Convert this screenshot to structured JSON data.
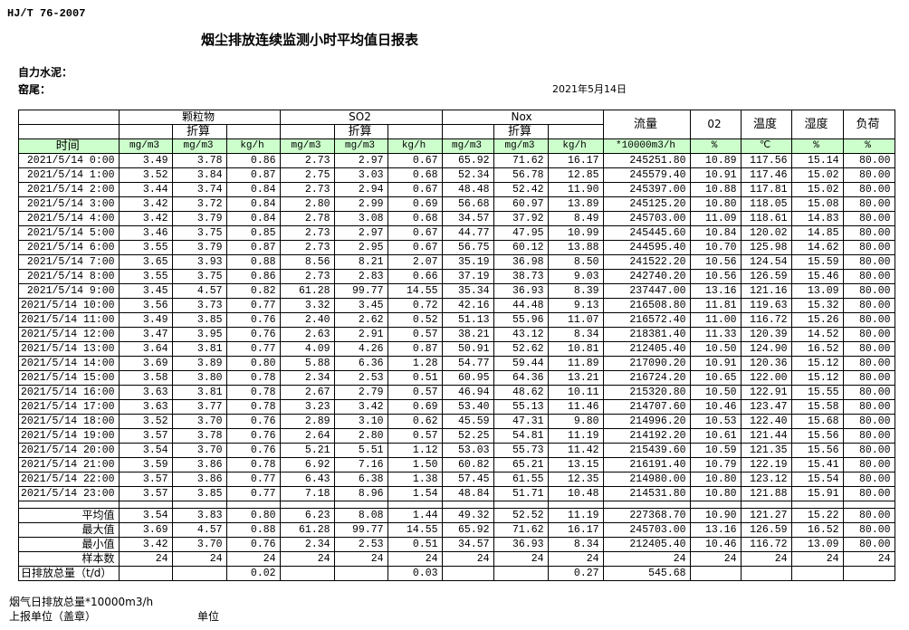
{
  "standard": "HJ/T  76-2007",
  "title": "烟尘排放连续监测小时平均值日报表",
  "company": "自力水泥：",
  "kiln": "窑尾：",
  "date": "2021年5月14日",
  "headers": {
    "groups": [
      "颗粒物",
      "SO2",
      "Nox"
    ],
    "converted": "折算",
    "flow": "流量",
    "o2": "02",
    "temp": "温度",
    "humidity": "湿度",
    "load": "负荷",
    "time": "时间",
    "units": [
      "mg/m3",
      "mg/m3",
      "kg/h",
      "mg/m3",
      "mg/m3",
      "kg/h",
      "mg/m3",
      "mg/m3",
      "kg/h",
      "*10000m3/h",
      "%",
      "℃",
      "%",
      "%"
    ]
  },
  "rows": [
    [
      "2021/5/14 0:00",
      "3.49",
      "3.78",
      "0.86",
      "2.73",
      "2.97",
      "0.67",
      "65.92",
      "71.62",
      "16.17",
      "245251.80",
      "10.89",
      "117.56",
      "15.14",
      "80.00"
    ],
    [
      "2021/5/14 1:00",
      "3.52",
      "3.84",
      "0.87",
      "2.75",
      "3.03",
      "0.68",
      "52.34",
      "56.78",
      "12.85",
      "245579.40",
      "10.91",
      "117.46",
      "15.02",
      "80.00"
    ],
    [
      "2021/5/14 2:00",
      "3.44",
      "3.74",
      "0.84",
      "2.73",
      "2.94",
      "0.67",
      "48.48",
      "52.42",
      "11.90",
      "245397.00",
      "10.88",
      "117.81",
      "15.02",
      "80.00"
    ],
    [
      "2021/5/14 3:00",
      "3.42",
      "3.72",
      "0.84",
      "2.80",
      "2.99",
      "0.69",
      "56.68",
      "60.97",
      "13.89",
      "245125.20",
      "10.80",
      "118.05",
      "15.08",
      "80.00"
    ],
    [
      "2021/5/14 4:00",
      "3.42",
      "3.79",
      "0.84",
      "2.78",
      "3.08",
      "0.68",
      "34.57",
      "37.92",
      "8.49",
      "245703.00",
      "11.09",
      "118.61",
      "14.83",
      "80.00"
    ],
    [
      "2021/5/14 5:00",
      "3.46",
      "3.75",
      "0.85",
      "2.73",
      "2.97",
      "0.67",
      "44.77",
      "47.95",
      "10.99",
      "245445.60",
      "10.84",
      "120.02",
      "14.85",
      "80.00"
    ],
    [
      "2021/5/14 6:00",
      "3.55",
      "3.79",
      "0.87",
      "2.73",
      "2.95",
      "0.67",
      "56.75",
      "60.12",
      "13.88",
      "244595.40",
      "10.70",
      "125.98",
      "14.62",
      "80.00"
    ],
    [
      "2021/5/14 7:00",
      "3.65",
      "3.93",
      "0.88",
      "8.56",
      "8.21",
      "2.07",
      "35.19",
      "36.98",
      "8.50",
      "241522.20",
      "10.56",
      "124.54",
      "15.59",
      "80.00"
    ],
    [
      "2021/5/14 8:00",
      "3.55",
      "3.75",
      "0.86",
      "2.73",
      "2.83",
      "0.66",
      "37.19",
      "38.73",
      "9.03",
      "242740.20",
      "10.56",
      "126.59",
      "15.46",
      "80.00"
    ],
    [
      "2021/5/14 9:00",
      "3.45",
      "4.57",
      "0.82",
      "61.28",
      "99.77",
      "14.55",
      "35.34",
      "36.93",
      "8.39",
      "237447.00",
      "13.16",
      "121.16",
      "13.09",
      "80.00"
    ],
    [
      "2021/5/14 10:00",
      "3.56",
      "3.73",
      "0.77",
      "3.32",
      "3.45",
      "0.72",
      "42.16",
      "44.48",
      "9.13",
      "216508.80",
      "11.81",
      "119.63",
      "15.32",
      "80.00"
    ],
    [
      "2021/5/14 11:00",
      "3.49",
      "3.85",
      "0.76",
      "2.40",
      "2.62",
      "0.52",
      "51.13",
      "55.96",
      "11.07",
      "216572.40",
      "11.00",
      "116.72",
      "15.26",
      "80.00"
    ],
    [
      "2021/5/14 12:00",
      "3.47",
      "3.95",
      "0.76",
      "2.63",
      "2.91",
      "0.57",
      "38.21",
      "43.12",
      "8.34",
      "218381.40",
      "11.33",
      "120.39",
      "14.52",
      "80.00"
    ],
    [
      "2021/5/14 13:00",
      "3.64",
      "3.81",
      "0.77",
      "4.09",
      "4.26",
      "0.87",
      "50.91",
      "52.62",
      "10.81",
      "212405.40",
      "10.50",
      "124.90",
      "16.52",
      "80.00"
    ],
    [
      "2021/5/14 14:00",
      "3.69",
      "3.89",
      "0.80",
      "5.88",
      "6.36",
      "1.28",
      "54.77",
      "59.44",
      "11.89",
      "217090.20",
      "10.91",
      "120.36",
      "15.12",
      "80.00"
    ],
    [
      "2021/5/14 15:00",
      "3.58",
      "3.80",
      "0.78",
      "2.34",
      "2.53",
      "0.51",
      "60.95",
      "64.36",
      "13.21",
      "216724.20",
      "10.65",
      "122.00",
      "15.12",
      "80.00"
    ],
    [
      "2021/5/14 16:00",
      "3.63",
      "3.81",
      "0.78",
      "2.67",
      "2.79",
      "0.57",
      "46.94",
      "48.62",
      "10.11",
      "215320.80",
      "10.50",
      "122.91",
      "15.55",
      "80.00"
    ],
    [
      "2021/5/14 17:00",
      "3.63",
      "3.77",
      "0.78",
      "3.23",
      "3.42",
      "0.69",
      "53.40",
      "55.13",
      "11.46",
      "214707.60",
      "10.46",
      "123.47",
      "15.58",
      "80.00"
    ],
    [
      "2021/5/14 18:00",
      "3.52",
      "3.70",
      "0.76",
      "2.89",
      "3.10",
      "0.62",
      "45.59",
      "47.31",
      "9.80",
      "214996.20",
      "10.53",
      "122.40",
      "15.68",
      "80.00"
    ],
    [
      "2021/5/14 19:00",
      "3.57",
      "3.78",
      "0.76",
      "2.64",
      "2.80",
      "0.57",
      "52.25",
      "54.81",
      "11.19",
      "214192.20",
      "10.61",
      "121.44",
      "15.56",
      "80.00"
    ],
    [
      "2021/5/14 20:00",
      "3.54",
      "3.70",
      "0.76",
      "5.21",
      "5.51",
      "1.12",
      "53.03",
      "55.73",
      "11.42",
      "215439.60",
      "10.59",
      "121.35",
      "15.56",
      "80.00"
    ],
    [
      "2021/5/14 21:00",
      "3.59",
      "3.86",
      "0.78",
      "6.92",
      "7.16",
      "1.50",
      "60.82",
      "65.21",
      "13.15",
      "216191.40",
      "10.79",
      "122.19",
      "15.41",
      "80.00"
    ],
    [
      "2021/5/14 22:00",
      "3.57",
      "3.86",
      "0.77",
      "6.43",
      "6.38",
      "1.38",
      "57.45",
      "61.55",
      "12.35",
      "214980.00",
      "10.80",
      "123.12",
      "15.54",
      "80.00"
    ],
    [
      "2021/5/14 23:00",
      "3.57",
      "3.85",
      "0.77",
      "7.18",
      "8.96",
      "1.54",
      "48.84",
      "51.71",
      "10.48",
      "214531.80",
      "10.80",
      "121.88",
      "15.91",
      "80.00"
    ]
  ],
  "summary": [
    [
      "平均值",
      "3.54",
      "3.83",
      "0.80",
      "6.23",
      "8.08",
      "1.44",
      "49.32",
      "52.52",
      "11.19",
      "227368.70",
      "10.90",
      "121.27",
      "15.22",
      "80.00"
    ],
    [
      "最大值",
      "3.69",
      "4.57",
      "0.88",
      "61.28",
      "99.77",
      "14.55",
      "65.92",
      "71.62",
      "16.17",
      "245703.00",
      "13.16",
      "126.59",
      "16.52",
      "80.00"
    ],
    [
      "最小值",
      "3.42",
      "3.70",
      "0.76",
      "2.34",
      "2.53",
      "0.51",
      "34.57",
      "36.93",
      "8.34",
      "212405.40",
      "10.46",
      "116.72",
      "13.09",
      "80.00"
    ],
    [
      "样本数",
      "24",
      "24",
      "24",
      "24",
      "24",
      "24",
      "24",
      "24",
      "24",
      "24",
      "24",
      "24",
      "24",
      "24"
    ],
    [
      "日排放总量（t/d）",
      "",
      "",
      "0.02",
      "",
      "",
      "0.03",
      "",
      "",
      "0.27",
      "545.68",
      "",
      "",
      "",
      ""
    ]
  ],
  "footer": {
    "flue_total": "烟气日排放总量*10000m3/h",
    "reporter": "上报单位（盖章）",
    "unit": "单位"
  }
}
